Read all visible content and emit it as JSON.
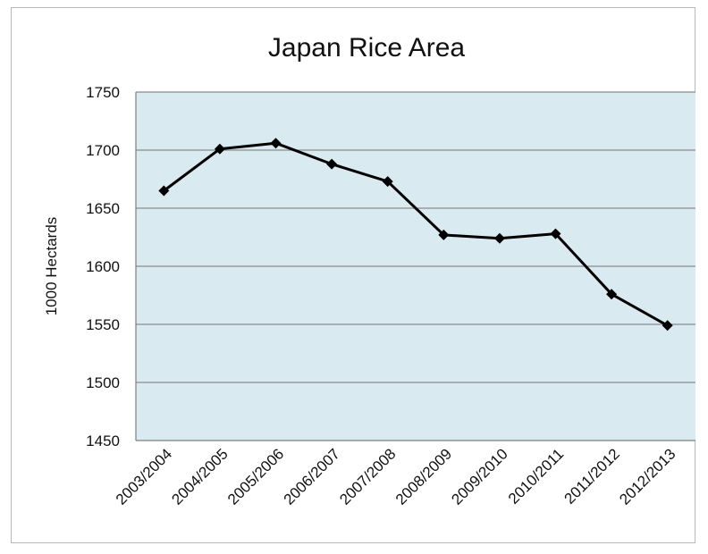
{
  "chart_data": {
    "type": "line",
    "title": "Japan Rice Area",
    "xlabel": "",
    "ylabel": "1000 Hectards",
    "categories": [
      "2003/2004",
      "2004/2005",
      "2005/2006",
      "2006/2007",
      "2007/2008",
      "2008/2009",
      "2009/2010",
      "2010/2011",
      "2011/2012",
      "2012/2013"
    ],
    "series": [
      {
        "values": [
          1665,
          1701,
          1706,
          1688,
          1673,
          1627,
          1624,
          1628,
          1576,
          1549
        ],
        "color": "#000000"
      }
    ],
    "ylim": [
      1450,
      1750
    ],
    "yticks": [
      1450,
      1500,
      1550,
      1600,
      1650,
      1700,
      1750
    ],
    "grid": true,
    "legend": "none",
    "colors": {
      "plot_background": "#d9eaf0",
      "gridline": "#8c8c8c",
      "line": "#000000"
    }
  }
}
